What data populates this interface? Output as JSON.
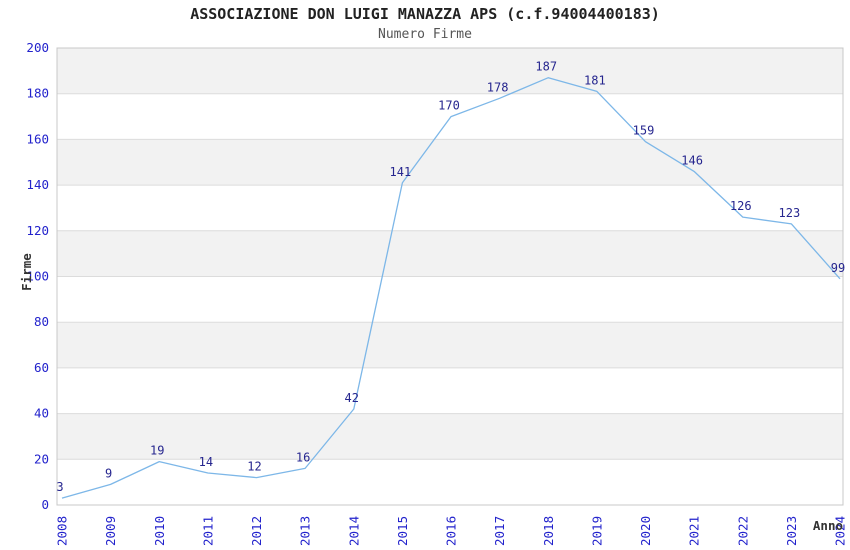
{
  "header": {
    "title": "ASSOCIAZIONE DON LUIGI MANAZZA APS (c.f.94004400183)",
    "subtitle": "Numero Firme"
  },
  "chart_data": {
    "type": "line",
    "title": "ASSOCIAZIONE DON LUIGI MANAZZA APS (c.f.94004400183)",
    "subtitle": "Numero Firme",
    "xlabel": "Anno",
    "ylabel": "Firme",
    "categories": [
      "2008",
      "2009",
      "2010",
      "2011",
      "2012",
      "2013",
      "2014",
      "2015",
      "2016",
      "2017",
      "2018",
      "2019",
      "2020",
      "2021",
      "2022",
      "2023",
      "2024"
    ],
    "values": [
      3,
      9,
      19,
      14,
      12,
      16,
      42,
      141,
      170,
      178,
      187,
      181,
      159,
      146,
      126,
      123,
      99
    ],
    "ylim": [
      0,
      200
    ],
    "ytick_step": 20,
    "grid": "horizontal-bands-alternating",
    "legend": "none",
    "data_labels": true,
    "colors": {
      "line": "#7db7e8",
      "data_label": "#26268f",
      "tick_label": "#2323cc",
      "axis_title": "#333333",
      "band": "#f2f2f2",
      "gridline": "#dcdcdc",
      "border": "#c8c8c8"
    }
  }
}
